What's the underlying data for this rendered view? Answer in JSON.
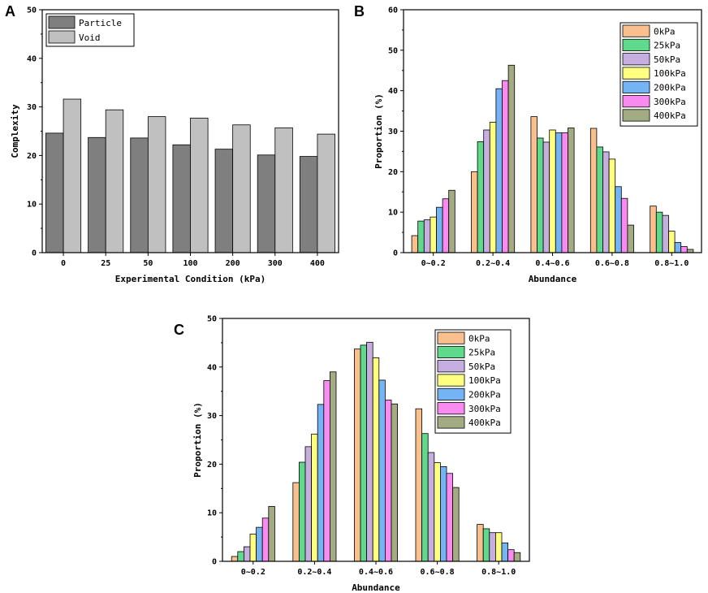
{
  "chart_data": [
    {
      "panel": "A",
      "type": "bar",
      "xlabel": "Experimental Condition (kPa)",
      "ylabel": "Complexity",
      "ylim": [
        0,
        50
      ],
      "yticks": [
        "0",
        "10",
        "20",
        "30",
        "40",
        "50"
      ],
      "categories": [
        "0",
        "25",
        "50",
        "100",
        "200",
        "300",
        "400"
      ],
      "legend_position": "top-left",
      "series": [
        {
          "name": "Particle",
          "color": "#7f7f7f",
          "values": [
            24.6,
            23.7,
            23.6,
            22.2,
            21.3,
            20.1,
            19.8
          ]
        },
        {
          "name": "Void",
          "color": "#c0c0c0",
          "values": [
            31.6,
            29.4,
            28.0,
            27.7,
            26.3,
            25.7,
            24.4
          ]
        }
      ]
    },
    {
      "panel": "B",
      "type": "bar",
      "xlabel": "Abundance",
      "ylabel": "Proportion (%)",
      "ylim": [
        0,
        60
      ],
      "yticks": [
        "0",
        "10",
        "20",
        "30",
        "40",
        "50",
        "60"
      ],
      "categories": [
        "0~0.2",
        "0.2~0.4",
        "0.4~0.6",
        "0.6~0.8",
        "0.8~1.0"
      ],
      "legend_position": "top-right",
      "series": [
        {
          "name": "0kPa",
          "color": "#f9c08e",
          "values": [
            4.2,
            20.0,
            33.6,
            30.7,
            11.5
          ]
        },
        {
          "name": "25kPa",
          "color": "#5fd98c",
          "values": [
            7.8,
            27.4,
            28.3,
            26.1,
            10.0
          ]
        },
        {
          "name": "50kPa",
          "color": "#c6afe0",
          "values": [
            8.1,
            30.3,
            27.3,
            24.9,
            9.2
          ]
        },
        {
          "name": "100kPa",
          "color": "#ffff80",
          "values": [
            8.8,
            32.2,
            30.3,
            23.1,
            5.3
          ]
        },
        {
          "name": "200kPa",
          "color": "#74b4f4",
          "values": [
            11.2,
            40.5,
            29.6,
            16.3,
            2.5
          ]
        },
        {
          "name": "300kPa",
          "color": "#f98af0",
          "values": [
            13.3,
            42.5,
            29.6,
            13.4,
            1.5
          ]
        },
        {
          "name": "400kPa",
          "color": "#a3ab82",
          "values": [
            15.4,
            46.3,
            30.8,
            6.8,
            0.8
          ]
        }
      ]
    },
    {
      "panel": "C",
      "type": "bar",
      "xlabel": "Abundance",
      "ylabel": "Proportion (%)",
      "ylim": [
        0,
        50
      ],
      "yticks": [
        "0",
        "10",
        "20",
        "30",
        "40",
        "50"
      ],
      "categories": [
        "0~0.2",
        "0.2~0.4",
        "0.4~0.6",
        "0.6~0.8",
        "0.8~1.0"
      ],
      "legend_position": "top-right",
      "series": [
        {
          "name": "0kPa",
          "color": "#f9c08e",
          "values": [
            1.0,
            16.2,
            43.7,
            31.4,
            7.6
          ]
        },
        {
          "name": "25kPa",
          "color": "#5fd98c",
          "values": [
            2.0,
            20.4,
            44.5,
            26.3,
            6.7
          ]
        },
        {
          "name": "50kPa",
          "color": "#c6afe0",
          "values": [
            3.0,
            23.6,
            45.1,
            22.4,
            5.9
          ]
        },
        {
          "name": "100kPa",
          "color": "#ffff80",
          "values": [
            5.6,
            26.2,
            41.9,
            20.3,
            5.9
          ]
        },
        {
          "name": "200kPa",
          "color": "#74b4f4",
          "values": [
            7.0,
            32.3,
            37.3,
            19.5,
            3.8
          ]
        },
        {
          "name": "300kPa",
          "color": "#f98af0",
          "values": [
            8.9,
            37.2,
            33.2,
            18.1,
            2.4
          ]
        },
        {
          "name": "400kPa",
          "color": "#a3ab82",
          "values": [
            11.3,
            39.0,
            32.4,
            15.2,
            1.8
          ]
        }
      ]
    }
  ]
}
